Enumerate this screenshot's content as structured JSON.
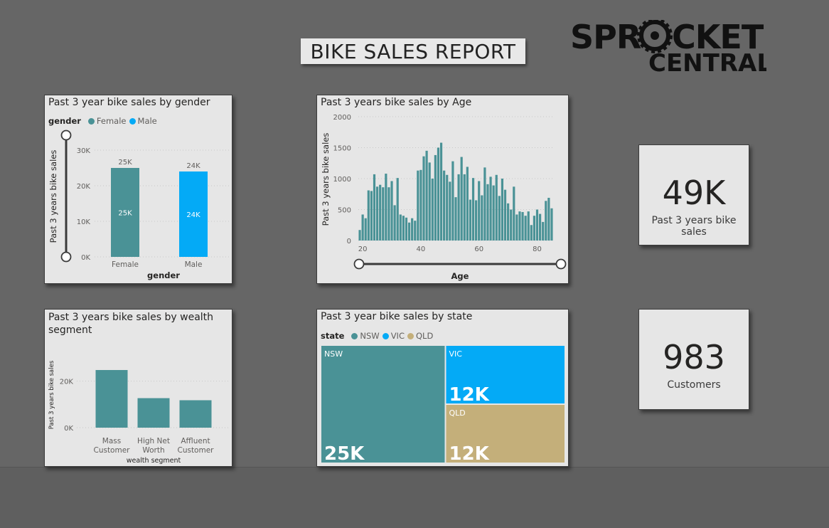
{
  "report": {
    "title": "BIKE SALES REPORT",
    "logo_line1": "SPROCKET",
    "logo_line2": "CENTRAL"
  },
  "colors": {
    "teal": "#4a9296",
    "blue": "#04aaf6",
    "tan": "#c4af7a"
  },
  "gender_card": {
    "title": "Past 3 year bike sales by gender",
    "legend_title": "gender",
    "legend": [
      "Female",
      "Male"
    ]
  },
  "age_card": {
    "title": "Past 3 years bike sales by Age"
  },
  "wealth_card": {
    "title": "Past 3 years bike sales by wealth segment"
  },
  "state_card": {
    "title": "Past 3 year bike sales by state",
    "legend_title": "state",
    "legend": [
      "NSW",
      "VIC",
      "QLD"
    ]
  },
  "kpi_sales": {
    "value": "49K",
    "label": "Past 3 years bike sales"
  },
  "kpi_customers": {
    "value": "983",
    "label": "Customers"
  },
  "chart_data": [
    {
      "type": "bar",
      "title": "Past 3 year bike sales by gender",
      "xlabel": "gender",
      "ylabel": "Past 3 years bike sales",
      "categories": [
        "Female",
        "Male"
      ],
      "values": [
        25000,
        24000
      ],
      "labels": [
        "25K",
        "24K"
      ],
      "yticks": [
        "0K",
        "10K",
        "20K",
        "30K"
      ],
      "ylim": [
        0,
        30000
      ],
      "legend": "top-left"
    },
    {
      "type": "bar",
      "title": "Past 3 years bike sales by Age",
      "xlabel": "Age",
      "ylabel": "Past 3 years bike sales",
      "x": [
        19,
        20,
        21,
        22,
        23,
        24,
        25,
        26,
        27,
        28,
        29,
        30,
        31,
        32,
        33,
        34,
        35,
        36,
        37,
        38,
        39,
        40,
        41,
        42,
        43,
        44,
        45,
        46,
        47,
        48,
        49,
        50,
        51,
        52,
        53,
        54,
        55,
        56,
        57,
        58,
        59,
        60,
        61,
        62,
        63,
        64,
        65,
        66,
        67,
        68,
        69,
        70,
        71,
        72,
        73,
        74,
        75,
        76,
        77,
        78,
        79,
        80,
        81,
        82,
        83,
        84,
        85
      ],
      "values": [
        170,
        420,
        360,
        810,
        800,
        1070,
        870,
        900,
        860,
        1080,
        860,
        960,
        570,
        1010,
        420,
        400,
        370,
        290,
        360,
        320,
        1130,
        1140,
        1360,
        1450,
        1260,
        1000,
        1380,
        1500,
        1580,
        1130,
        1060,
        950,
        1280,
        700,
        1070,
        1350,
        1070,
        1190,
        660,
        1010,
        650,
        960,
        730,
        1180,
        910,
        1030,
        890,
        1060,
        720,
        1000,
        820,
        600,
        500,
        870,
        420,
        470,
        460,
        400,
        470,
        250,
        400,
        500,
        430,
        300,
        640,
        690,
        520
      ],
      "xticks": [
        "20",
        "40",
        "60",
        "80"
      ],
      "yticks": [
        "0",
        "500",
        "1000",
        "1500",
        "2000"
      ],
      "ylim": [
        0,
        2000
      ],
      "xlim": [
        19,
        85
      ]
    },
    {
      "type": "bar",
      "title": "Past 3 years bike sales by wealth segment",
      "xlabel": "wealth segment",
      "ylabel": "Past 3 years bike sales",
      "categories": [
        "Mass Customer",
        "High Net Worth",
        "Affluent Customer"
      ],
      "category_lines": [
        [
          "Mass",
          "Customer"
        ],
        [
          "High Net",
          "Worth"
        ],
        [
          "Affluent",
          "Customer"
        ]
      ],
      "values": [
        24800,
        12700,
        11800
      ],
      "yticks": [
        "0K",
        "20K"
      ],
      "ylim": [
        0,
        30000
      ]
    },
    {
      "type": "treemap",
      "title": "Past 3 year bike sales by state",
      "categories": [
        "NSW",
        "VIC",
        "QLD"
      ],
      "values": [
        25000,
        12000,
        12000
      ],
      "labels": [
        "25K",
        "12K",
        "12K"
      ],
      "legend": "top-left"
    }
  ]
}
